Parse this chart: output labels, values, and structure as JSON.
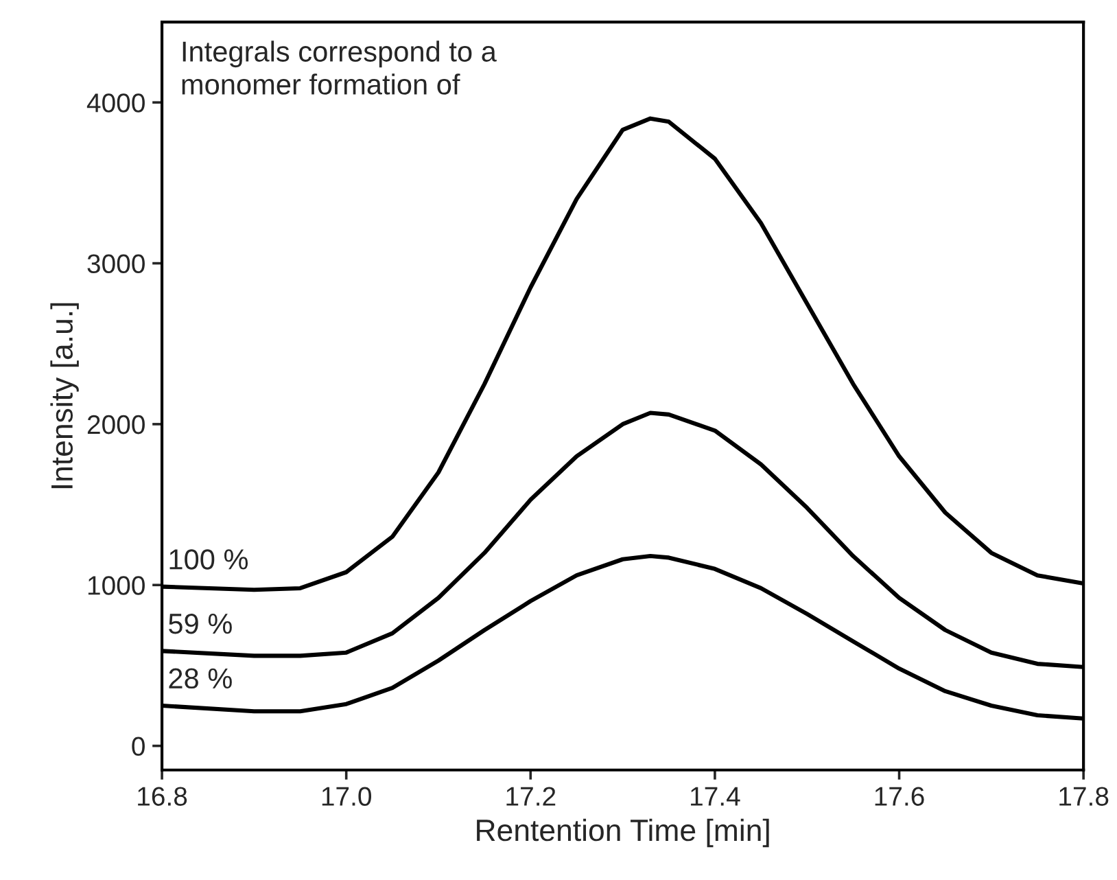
{
  "chart_data": {
    "type": "line",
    "xlabel": "Rentention Time [min]",
    "ylabel": "Intensity [a.u.]",
    "annotations": [
      "Integrals correspond to a\nmonomer formation of"
    ],
    "x": [
      16.8,
      16.9,
      16.95,
      17.0,
      17.05,
      17.1,
      17.15,
      17.2,
      17.25,
      17.3,
      17.33,
      17.35,
      17.4,
      17.45,
      17.5,
      17.55,
      17.6,
      17.65,
      17.7,
      17.75,
      17.8
    ],
    "series": [
      {
        "name": "100 %",
        "color": "#000000",
        "values": [
          990,
          970,
          980,
          1080,
          1300,
          1700,
          2250,
          2850,
          3400,
          3830,
          3900,
          3880,
          3650,
          3250,
          2750,
          2250,
          1800,
          1450,
          1200,
          1060,
          1010
        ]
      },
      {
        "name": "59 %",
        "color": "#000000",
        "values": [
          590,
          560,
          560,
          580,
          700,
          920,
          1200,
          1530,
          1800,
          2000,
          2070,
          2060,
          1960,
          1750,
          1480,
          1180,
          920,
          720,
          580,
          510,
          490
        ]
      },
      {
        "name": "28 %",
        "color": "#000000",
        "values": [
          250,
          215,
          215,
          260,
          360,
          530,
          720,
          900,
          1060,
          1160,
          1180,
          1170,
          1100,
          980,
          820,
          650,
          480,
          340,
          250,
          190,
          170
        ]
      }
    ],
    "xlim": [
      16.8,
      17.8
    ],
    "xticks": [
      {
        "value": 16.8,
        "label": "16.8"
      },
      {
        "value": 17.0,
        "label": "17.0"
      },
      {
        "value": 17.2,
        "label": "17.2"
      },
      {
        "value": 17.4,
        "label": "17.4"
      },
      {
        "value": 17.6,
        "label": "17.6"
      },
      {
        "value": 17.8,
        "label": "17.8"
      }
    ],
    "ylim": [
      -150,
      4500
    ],
    "yticks": [
      0,
      1000,
      2000,
      3000,
      4000
    ],
    "grid": false,
    "legend": false,
    "marker": "none",
    "line_style": "solid"
  }
}
